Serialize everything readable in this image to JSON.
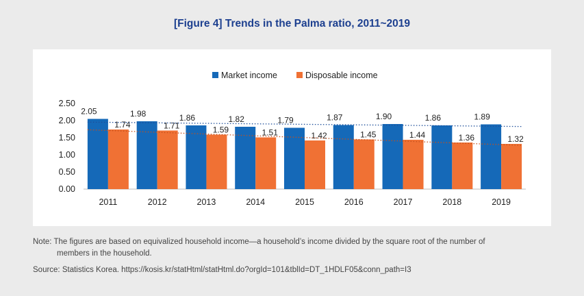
{
  "title": "[Figure 4] Trends in the Palma ratio, 2011~2019",
  "note_line1": "Note: The figures are based on equivalized household income—a household’s income divided by the square root of the number of",
  "note_line2": "members in the household.",
  "source": "Source: Statistics Korea. https://kosis.kr/statHtml/statHtml.do?orgId=101&tblId=DT_1HDLF05&conn_path=I3",
  "colors": {
    "market": "#1569b8",
    "disposable": "#f07134",
    "background": "#ebebeb",
    "title": "#1c3f8f"
  },
  "chart_data": {
    "type": "bar",
    "categories": [
      "2011",
      "2012",
      "2013",
      "2014",
      "2015",
      "2016",
      "2017",
      "2018",
      "2019"
    ],
    "series": [
      {
        "name": "Market income",
        "values": [
          2.05,
          1.98,
          1.86,
          1.82,
          1.79,
          1.87,
          1.9,
          1.86,
          1.89
        ],
        "labels": [
          "2.05",
          "1.98",
          "1.86",
          "1.82",
          "1.79",
          "1.87",
          "1.90",
          "1.86",
          "1.89"
        ],
        "trendline": "dotted"
      },
      {
        "name": "Disposable income",
        "values": [
          1.74,
          1.71,
          1.59,
          1.51,
          1.42,
          1.45,
          1.44,
          1.36,
          1.32
        ],
        "labels": [
          "1.74",
          "1.71",
          "1.59",
          "1.51",
          "1.42",
          "1.45",
          "1.44",
          "1.36",
          "1.32"
        ],
        "trendline": "dotted"
      }
    ],
    "yticks": [
      "2.50",
      "2.00",
      "1.50",
      "1.00",
      "0.50",
      "0.00"
    ],
    "ylim": [
      0,
      2.5
    ],
    "grid": false,
    "legend": "top-center"
  }
}
